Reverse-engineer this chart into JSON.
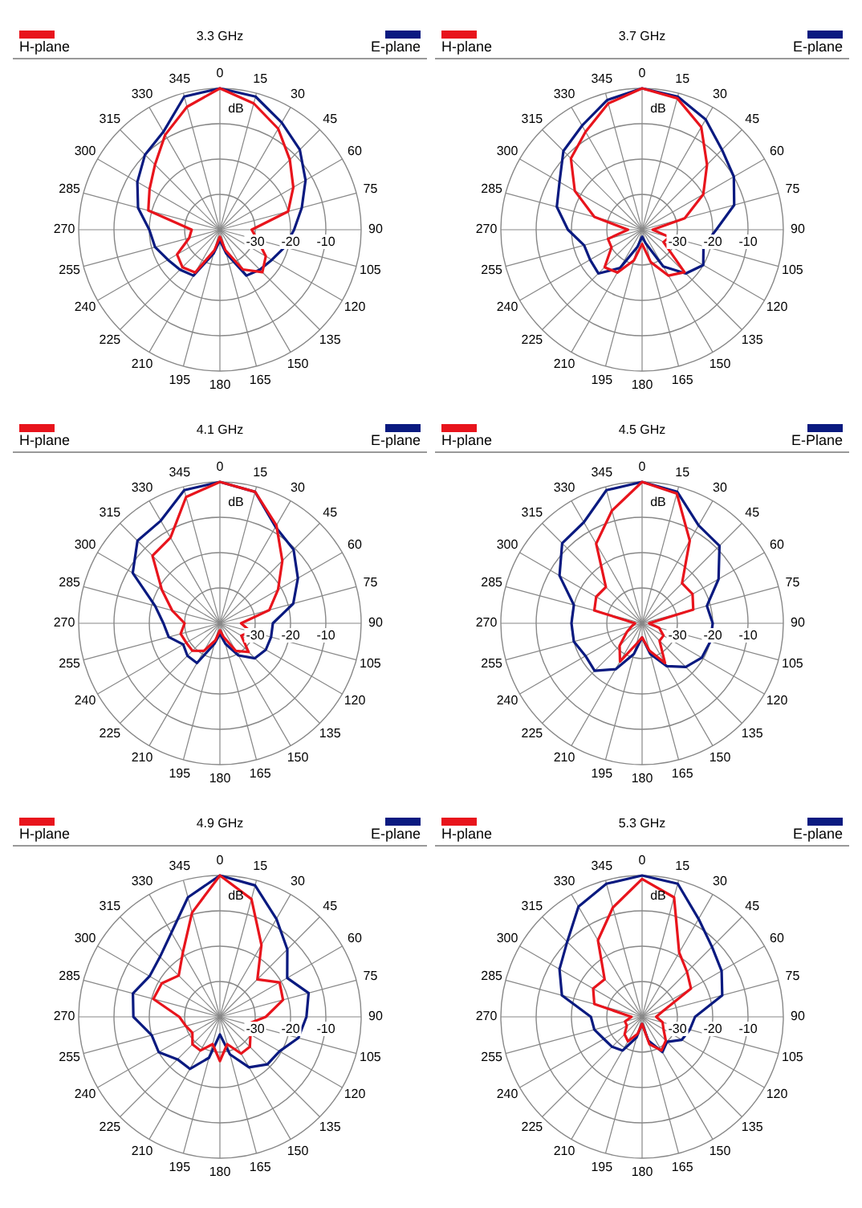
{
  "chart_data": [
    {
      "type": "radar",
      "title": "3.3 GHz",
      "legend": "top",
      "grid": true,
      "marker": "none",
      "annotations": [
        "dB"
      ],
      "categories": [
        "0",
        "15",
        "30",
        "45",
        "60",
        "75",
        "90",
        "105",
        "120",
        "135",
        "150",
        "165",
        "180",
        "195",
        "210",
        "225",
        "240",
        "255",
        "270",
        "285",
        "300",
        "315",
        "330",
        "345"
      ],
      "ylim": [
        -40,
        0
      ],
      "yticks": [
        -30,
        -20,
        -10
      ],
      "series": [
        {
          "name": "H-plane",
          "color": "#e8141c",
          "values": [
            0,
            -3,
            -7,
            -12,
            -16,
            -20,
            -31,
            -29,
            -25,
            -23,
            -27,
            -34,
            -38,
            -34,
            -26,
            -25,
            -26,
            -31,
            -32,
            -19,
            -17,
            -14,
            -9,
            -4
          ]
        },
        {
          "name": "E-plane",
          "color": "#0a1a80",
          "values": [
            0,
            -1,
            -5,
            -8,
            -12,
            -16,
            -19,
            -21,
            -23,
            -24,
            -25,
            -33,
            -37,
            -33,
            -25,
            -24,
            -23,
            -21,
            -20,
            -16,
            -13,
            -10,
            -8,
            -1
          ]
        }
      ]
    },
    {
      "type": "radar",
      "title": "3.7 GHz",
      "legend": "top",
      "grid": true,
      "marker": "none",
      "annotations": [
        "dB"
      ],
      "categories": [
        "0",
        "15",
        "30",
        "45",
        "60",
        "75",
        "90",
        "105",
        "120",
        "135",
        "150",
        "165",
        "180",
        "195",
        "210",
        "225",
        "240",
        "255",
        "270",
        "285",
        "300",
        "315",
        "330",
        "345"
      ],
      "ylim": [
        -40,
        0
      ],
      "yticks": [
        -30,
        -20,
        -10
      ],
      "series": [
        {
          "name": "H-plane",
          "color": "#e8141c",
          "values": [
            0,
            -1.5,
            -6.5,
            -14,
            -20,
            -27.5,
            -37,
            -32,
            -33,
            -23,
            -25,
            -30.5,
            -36,
            -31,
            -26,
            -25,
            -30,
            -30,
            -36,
            -26,
            -18,
            -11.5,
            -8,
            -3
          ]
        },
        {
          "name": "E-plane",
          "color": "#0a1a80",
          "values": [
            0,
            -1,
            -4,
            -8,
            -10,
            -13,
            -19,
            -22,
            -20,
            -22.5,
            -28,
            -36,
            -38,
            -35,
            -27.5,
            -22.5,
            -23,
            -23,
            -19,
            -15,
            -13,
            -8.5,
            -6,
            -2
          ]
        }
      ]
    },
    {
      "type": "radar",
      "title": "4.1 GHz",
      "legend": "top",
      "grid": true,
      "marker": "none",
      "annotations": [
        "dB"
      ],
      "categories": [
        "0",
        "15",
        "30",
        "45",
        "60",
        "75",
        "90",
        "105",
        "120",
        "135",
        "150",
        "165",
        "180",
        "195",
        "210",
        "225",
        "240",
        "255",
        "270",
        "285",
        "300",
        "315",
        "330",
        "345"
      ],
      "ylim": [
        -40,
        0
      ],
      "yticks": [
        -30,
        -20,
        -10
      ],
      "series": [
        {
          "name": "H-plane",
          "color": "#e8141c",
          "values": [
            0,
            -1.5,
            -8,
            -15,
            -21,
            -25.5,
            -34,
            -31,
            -33,
            -28.5,
            -31,
            -36,
            -38,
            -35,
            -31,
            -29,
            -29,
            -28.5,
            -30,
            -26,
            -21,
            -13,
            -12,
            -3
          ]
        },
        {
          "name": "E-plane",
          "color": "#0a1a80",
          "values": [
            0,
            -1.5,
            -8.5,
            -10.5,
            -14.5,
            -18.5,
            -25,
            -25,
            -25,
            -26,
            -29.5,
            -34,
            -37,
            -34,
            -27,
            -27,
            -28,
            -25,
            -24,
            -21,
            -11.5,
            -7,
            -6.5,
            -1
          ]
        }
      ]
    },
    {
      "type": "radar",
      "title": "4.5 GHz",
      "legend": "top",
      "grid": true,
      "marker": "none",
      "annotations": [
        "dB"
      ],
      "categories": [
        "0",
        "15",
        "30",
        "45",
        "60",
        "75",
        "90",
        "105",
        "120",
        "135",
        "150",
        "165",
        "180",
        "195",
        "210",
        "225",
        "240",
        "255",
        "270",
        "285",
        "300",
        "315",
        "330",
        "345"
      ],
      "ylim": [
        -40,
        0
      ],
      "yticks": [
        -30,
        -20,
        -10
      ],
      "series": [
        {
          "name": "H-plane",
          "color": "#e8141c",
          "values": [
            0,
            -2,
            -13,
            -24,
            -23.5,
            -25,
            -38,
            -35,
            -33,
            -33,
            -27,
            -32,
            -36,
            -34,
            -27.5,
            -31,
            -35,
            -37,
            -38,
            -26,
            -25,
            -25.5,
            -14,
            -7
          ]
        },
        {
          "name": "E-Plane",
          "color": "#0a1a80",
          "values": [
            0,
            -1.5,
            -8,
            -9,
            -15,
            -21,
            -20,
            -20,
            -20.5,
            -22.5,
            -26,
            -31,
            -36,
            -31,
            -25,
            -21,
            -21.5,
            -20,
            -20,
            -20,
            -13,
            -8,
            -7,
            -1
          ]
        }
      ]
    },
    {
      "type": "radar",
      "title": "4.9 GHz",
      "legend": "top",
      "grid": true,
      "marker": "none",
      "annotations": [
        "dB"
      ],
      "categories": [
        "0",
        "15",
        "30",
        "45",
        "60",
        "75",
        "90",
        "105",
        "120",
        "135",
        "150",
        "165",
        "180",
        "195",
        "210",
        "225",
        "240",
        "255",
        "270",
        "285",
        "300",
        "315",
        "330",
        "345"
      ],
      "ylim": [
        -40,
        0
      ],
      "yticks": [
        -30,
        -20,
        -10
      ],
      "series": [
        {
          "name": "H-plane",
          "color": "#e8141c",
          "values": [
            0,
            -5.5,
            -16.5,
            -25,
            -20.5,
            -21.5,
            -27,
            -32,
            -30,
            -28,
            -28,
            -32,
            -27.5,
            -32,
            -29,
            -29,
            -31,
            -30,
            -28.5,
            -20.5,
            -21,
            -23.5,
            -19,
            -9.5
          ]
        },
        {
          "name": "E-plane",
          "color": "#0a1a80",
          "values": [
            0,
            -1.5,
            -8,
            -13,
            -18,
            -14,
            -15.5,
            -17,
            -20.5,
            -21,
            -23.5,
            -29,
            -35,
            -28,
            -23,
            -23,
            -20,
            -20,
            -15.5,
            -14.5,
            -17,
            -16,
            -12.5,
            -5
          ]
        }
      ]
    },
    {
      "type": "radar",
      "title": "5.3 GHz",
      "legend": "top",
      "grid": true,
      "marker": "none",
      "annotations": [
        "dB"
      ],
      "categories": [
        "0",
        "15",
        "30",
        "45",
        "60",
        "75",
        "90",
        "105",
        "120",
        "135",
        "150",
        "165",
        "180",
        "195",
        "210",
        "225",
        "240",
        "255",
        "270",
        "285",
        "300",
        "315",
        "330",
        "345"
      ],
      "ylim": [
        -40,
        0
      ],
      "yticks": [
        -30,
        -20,
        -10
      ],
      "series": [
        {
          "name": "H-plane",
          "color": "#e8141c",
          "values": [
            -1,
            -5,
            -19,
            -22,
            -24,
            -34,
            -36,
            -34,
            -33,
            -30.5,
            -29,
            -32,
            -38,
            -35,
            -32,
            -33,
            -35,
            -35,
            -37,
            -26,
            -24,
            -25,
            -15,
            -8
          ]
        },
        {
          "name": "E-plane",
          "color": "#0a1a80",
          "values": [
            0,
            -1,
            -8,
            -12,
            -14,
            -16.5,
            -25,
            -26,
            -27,
            -30,
            -28.5,
            -33,
            -38,
            -34,
            -29,
            -28,
            -27.5,
            -26,
            -25.5,
            -16.5,
            -13,
            -10,
            -4,
            -1
          ]
        }
      ]
    }
  ]
}
